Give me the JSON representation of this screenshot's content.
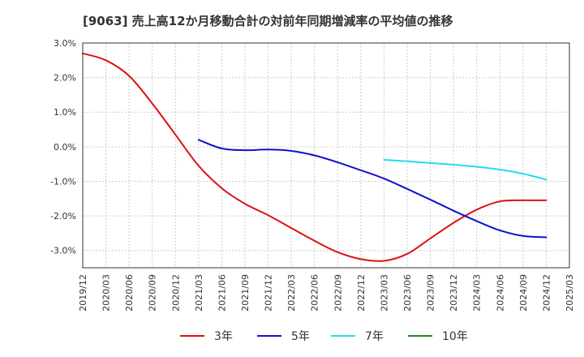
{
  "chart_data": {
    "type": "line",
    "title": "[9063]  売上高12か月移動合計の対前年同期増減率の平均値の推移",
    "xlabel": "",
    "ylabel": "",
    "ylim": [
      -3.5,
      3.0
    ],
    "yticks": [
      3.0,
      2.0,
      1.0,
      0.0,
      -1.0,
      -2.0,
      -3.0
    ],
    "ytick_labels": [
      "3.0%",
      "2.0%",
      "1.0%",
      "0.0%",
      "-1.0%",
      "-2.0%",
      "-3.0%"
    ],
    "x_range": [
      "2019/12",
      "2025/03"
    ],
    "xtick_labels": [
      "2019/12",
      "2020/03",
      "2020/06",
      "2020/09",
      "2020/12",
      "2021/03",
      "2021/06",
      "2021/09",
      "2021/12",
      "2022/03",
      "2022/06",
      "2022/09",
      "2022/12",
      "2023/03",
      "2023/06",
      "2023/09",
      "2023/12",
      "2024/03",
      "2024/06",
      "2024/09",
      "2024/12",
      "2025/03"
    ],
    "grid": true,
    "legend_position": "bottom",
    "series": [
      {
        "name": "3年",
        "color": "#dd1111",
        "x": [
          "2019/12",
          "2020/03",
          "2020/06",
          "2020/09",
          "2020/12",
          "2021/03",
          "2021/06",
          "2021/09",
          "2021/12",
          "2022/03",
          "2022/06",
          "2022/09",
          "2022/12",
          "2023/03",
          "2023/06",
          "2023/09",
          "2023/12",
          "2024/03",
          "2024/06",
          "2024/09",
          "2024/12"
        ],
        "values": [
          2.7,
          2.5,
          2.05,
          1.25,
          0.35,
          -0.55,
          -1.2,
          -1.65,
          -1.98,
          -2.35,
          -2.72,
          -3.05,
          -3.25,
          -3.3,
          -3.1,
          -2.65,
          -2.2,
          -1.82,
          -1.58,
          -1.55,
          -1.55
        ]
      },
      {
        "name": "5年",
        "color": "#1111cc",
        "x": [
          "2021/03",
          "2021/06",
          "2021/09",
          "2021/12",
          "2022/03",
          "2022/06",
          "2022/09",
          "2022/12",
          "2023/03",
          "2023/06",
          "2023/09",
          "2023/12",
          "2024/03",
          "2024/06",
          "2024/09",
          "2024/12"
        ],
        "values": [
          0.2,
          -0.05,
          -0.1,
          -0.08,
          -0.12,
          -0.25,
          -0.45,
          -0.68,
          -0.92,
          -1.22,
          -1.53,
          -1.85,
          -2.15,
          -2.42,
          -2.58,
          -2.62
        ]
      },
      {
        "name": "7年",
        "color": "#22ddee",
        "x": [
          "2023/03",
          "2023/06",
          "2023/09",
          "2023/12",
          "2024/03",
          "2024/06",
          "2024/09",
          "2024/12"
        ],
        "values": [
          -0.38,
          -0.42,
          -0.47,
          -0.52,
          -0.58,
          -0.66,
          -0.78,
          -0.95
        ]
      },
      {
        "name": "10年",
        "color": "#228822",
        "x": [],
        "values": []
      }
    ]
  }
}
